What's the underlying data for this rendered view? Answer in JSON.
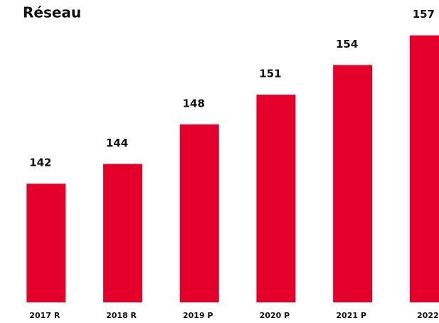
{
  "chart_data": {
    "type": "bar",
    "title": "Réseau",
    "categories": [
      "2017 R",
      "2018 R",
      "2019 P",
      "2020 P",
      "2021 P",
      "2022"
    ],
    "values": [
      142,
      144,
      148,
      151,
      154,
      157
    ],
    "color": "#e4002b",
    "ylim": [
      130,
      160
    ]
  }
}
